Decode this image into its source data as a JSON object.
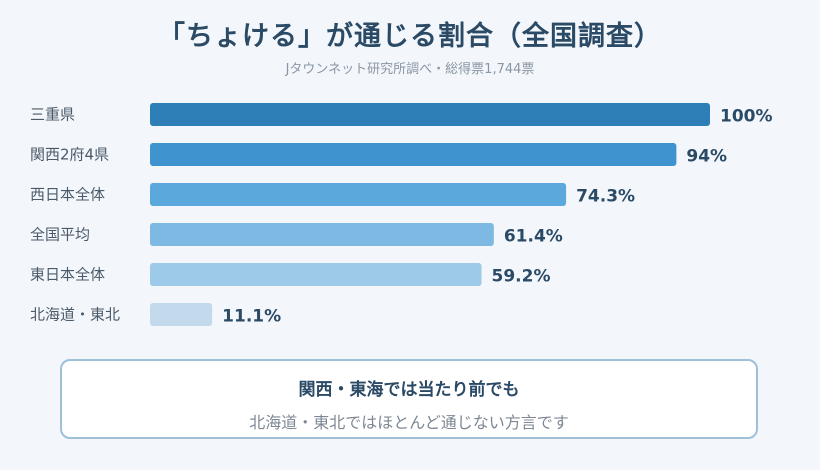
{
  "header": {
    "title": "「ちょける」が通じる割合（全国調査）",
    "subtitle": "Jタウンネット研究所調べ・総得票1,744票"
  },
  "chart_data": {
    "type": "bar",
    "orientation": "horizontal",
    "title": "「ちょける」が通じる割合（全国調査）",
    "categories": [
      "三重県",
      "関西2府4県",
      "西日本全体",
      "全国平均",
      "東日本全体",
      "北海道・東北"
    ],
    "values": [
      100,
      94,
      74.3,
      61.4,
      59.2,
      11.1
    ],
    "value_labels": [
      "100%",
      "94%",
      "74.3%",
      "61.4%",
      "59.2%",
      "11.1%"
    ],
    "xlim": [
      0,
      100
    ],
    "colors": [
      "#2e7fb8",
      "#3f94cf",
      "#5ba8dc",
      "#7db9e2",
      "#9dcae9",
      "#c3d9ec"
    ],
    "grid": false,
    "legend": "none"
  },
  "note": {
    "heading": "関西・東海では当たり前でも",
    "body": "北海道・東北ではほとんど通じない方言です"
  }
}
